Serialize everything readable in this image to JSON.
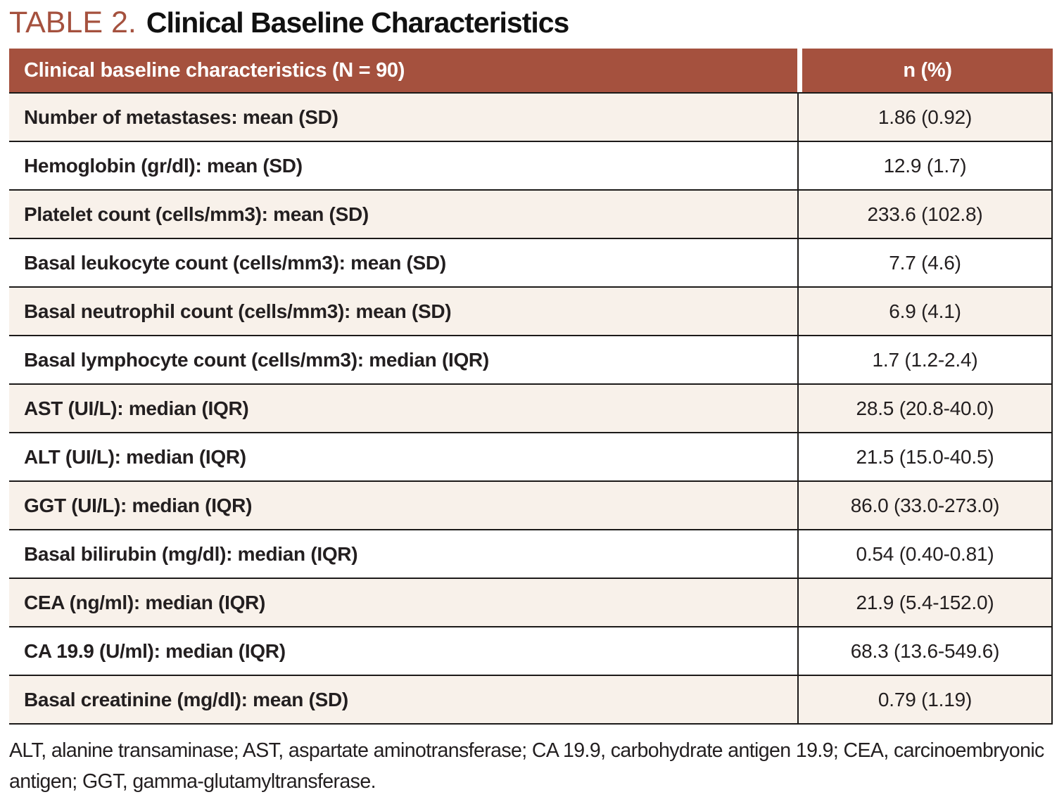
{
  "title": {
    "label": "TABLE 2.",
    "text": "Clinical Baseline Characteristics"
  },
  "table": {
    "header": {
      "col1": "Clinical baseline characteristics (N = 90)",
      "col2": "n (%)"
    },
    "rows": [
      {
        "label": "Number of metastases: mean (SD)",
        "value": "1.86 (0.92)"
      },
      {
        "label": "Hemoglobin (gr/dl): mean (SD)",
        "value": "12.9 (1.7)"
      },
      {
        "label": "Platelet count (cells/mm3): mean (SD)",
        "value": "233.6 (102.8)"
      },
      {
        "label": "Basal leukocyte count (cells/mm3): mean (SD)",
        "value": "7.7 (4.6)"
      },
      {
        "label": "Basal neutrophil count (cells/mm3): mean (SD)",
        "value": "6.9 (4.1)"
      },
      {
        "label": "Basal lymphocyte count (cells/mm3): median (IQR)",
        "value": "1.7 (1.2-2.4)"
      },
      {
        "label": "AST (UI/L): median (IQR)",
        "value": "28.5 (20.8-40.0)"
      },
      {
        "label": "ALT (UI/L): median (IQR)",
        "value": "21.5 (15.0-40.5)"
      },
      {
        "label": "GGT (UI/L): median (IQR)",
        "value": "86.0 (33.0-273.0)"
      },
      {
        "label": "Basal bilirubin (mg/dl): median (IQR)",
        "value": "0.54 (0.40-0.81)"
      },
      {
        "label": "CEA (ng/ml): median (IQR)",
        "value": "21.9 (5.4-152.0)"
      },
      {
        "label": "CA 19.9 (U/ml): median (IQR)",
        "value": "68.3 (13.6-549.6)"
      },
      {
        "label": "Basal creatinine (mg/dl): mean (SD)",
        "value": "0.79 (1.19)"
      }
    ],
    "footnote": "ALT, alanine transaminase; AST, aspartate aminotransferase; CA 19.9, carbohydrate antigen 19.9; CEA, carcinoembryonic antigen; GGT, gamma-glutamyltransferase."
  },
  "colors": {
    "header_bg": "#A5513E",
    "title_accent": "#A5513E",
    "row_alt_bg": "#F8F1EA",
    "row_bg": "#FFFFFF",
    "border": "#1C1A19",
    "text": "#231F20"
  }
}
